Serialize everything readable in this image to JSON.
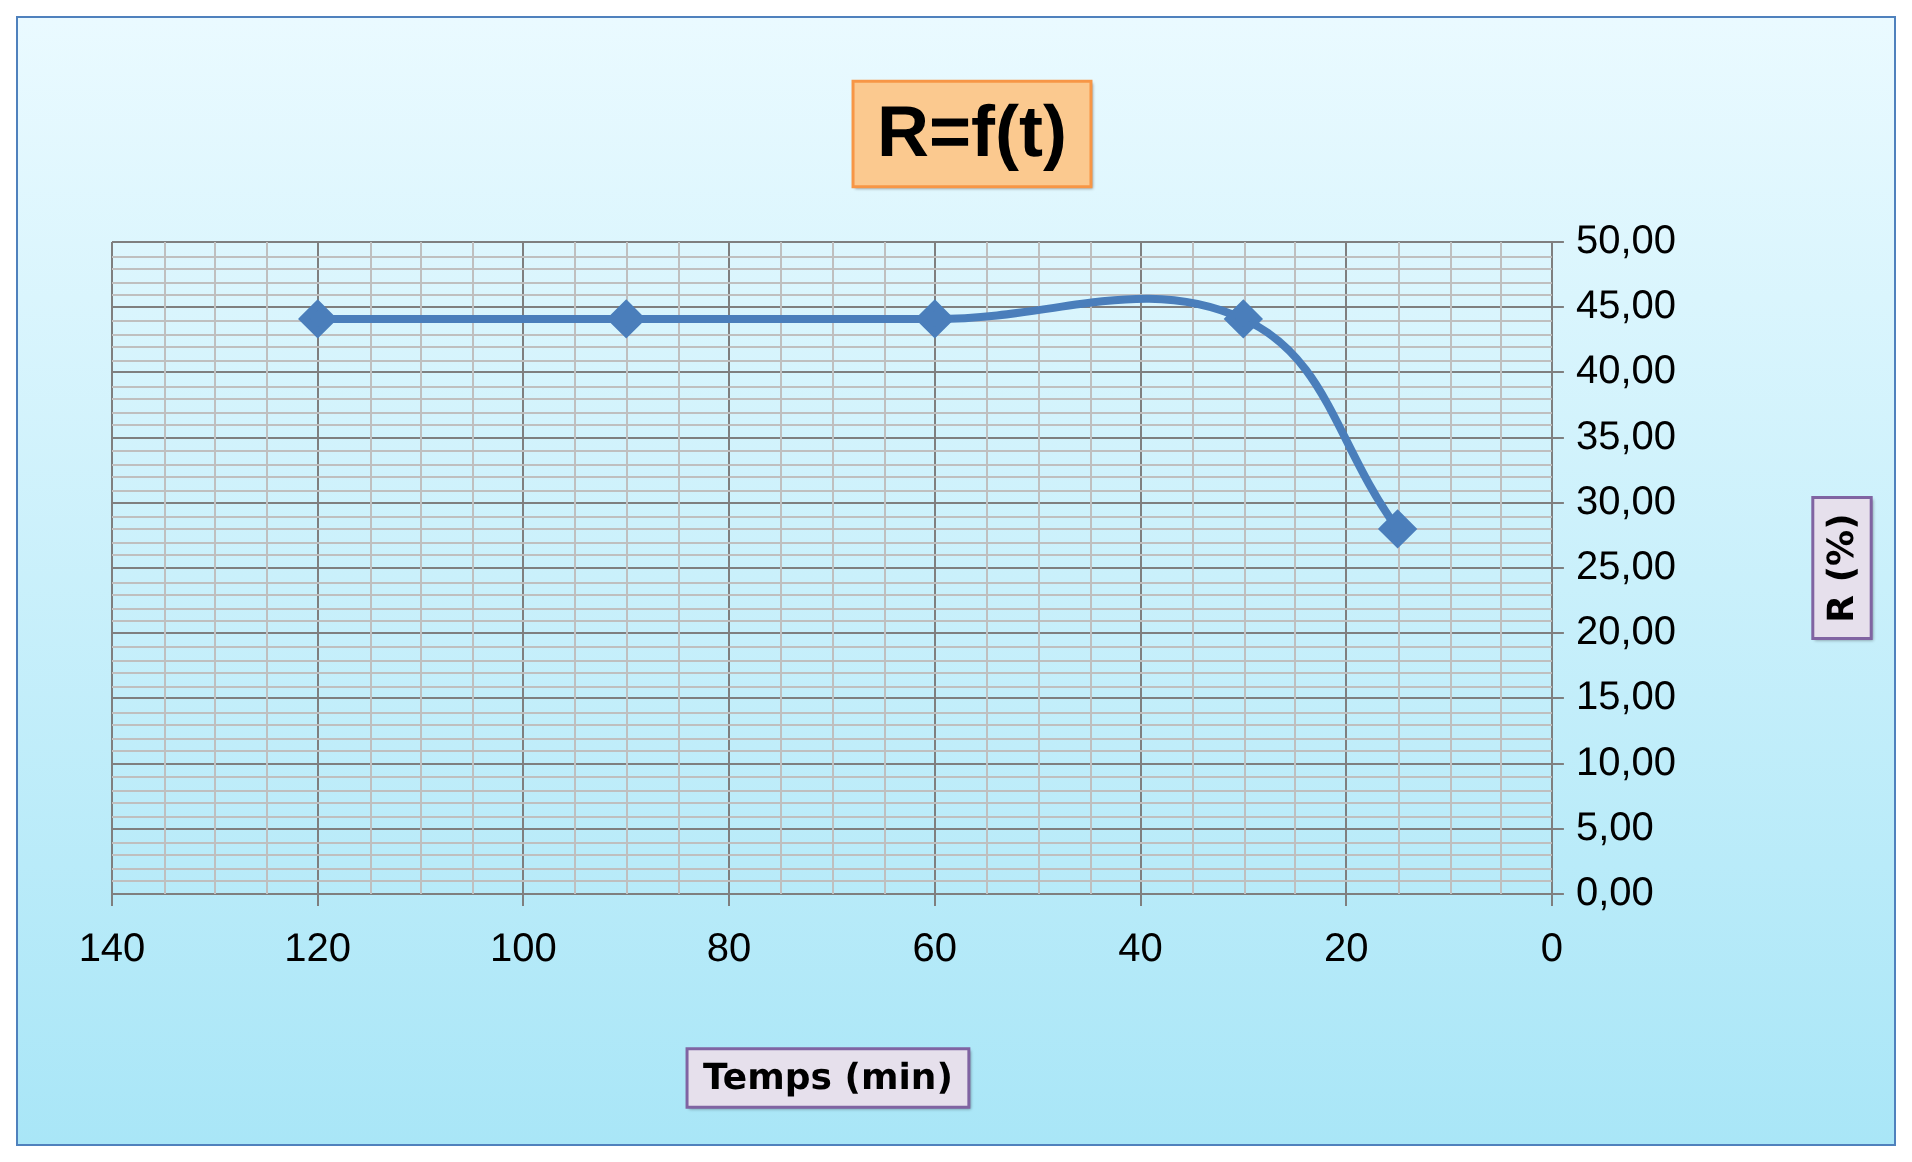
{
  "chart_data": {
    "type": "line",
    "title": "R=f(t)",
    "xlabel": "Temps (min)",
    "ylabel": "R (%)",
    "x": [
      120,
      90,
      60,
      30,
      15
    ],
    "series": [
      {
        "color": "#4a7ebb",
        "values": [
          44.1,
          44.1,
          44.1,
          44.1,
          28.0
        ]
      }
    ],
    "xlim": [
      140,
      0
    ],
    "xticks": [
      140,
      120,
      100,
      80,
      60,
      40,
      20,
      0
    ],
    "ylim": [
      0,
      50
    ],
    "yticks": [
      {
        "value": 0,
        "label": "0,00"
      },
      {
        "value": 5,
        "label": "5,00"
      },
      {
        "value": 10,
        "label": "10,00"
      },
      {
        "value": 15,
        "label": "15,00"
      },
      {
        "value": 20,
        "label": "20,00"
      },
      {
        "value": 25,
        "label": "25,00"
      },
      {
        "value": 30,
        "label": "30,00"
      },
      {
        "value": 35,
        "label": "35,00"
      },
      {
        "value": 40,
        "label": "40,00"
      },
      {
        "value": 45,
        "label": "45,00"
      },
      {
        "value": 50,
        "label": "50,00"
      }
    ],
    "grid": true,
    "legend": false,
    "marker": "diamond",
    "line_style": "solid"
  }
}
